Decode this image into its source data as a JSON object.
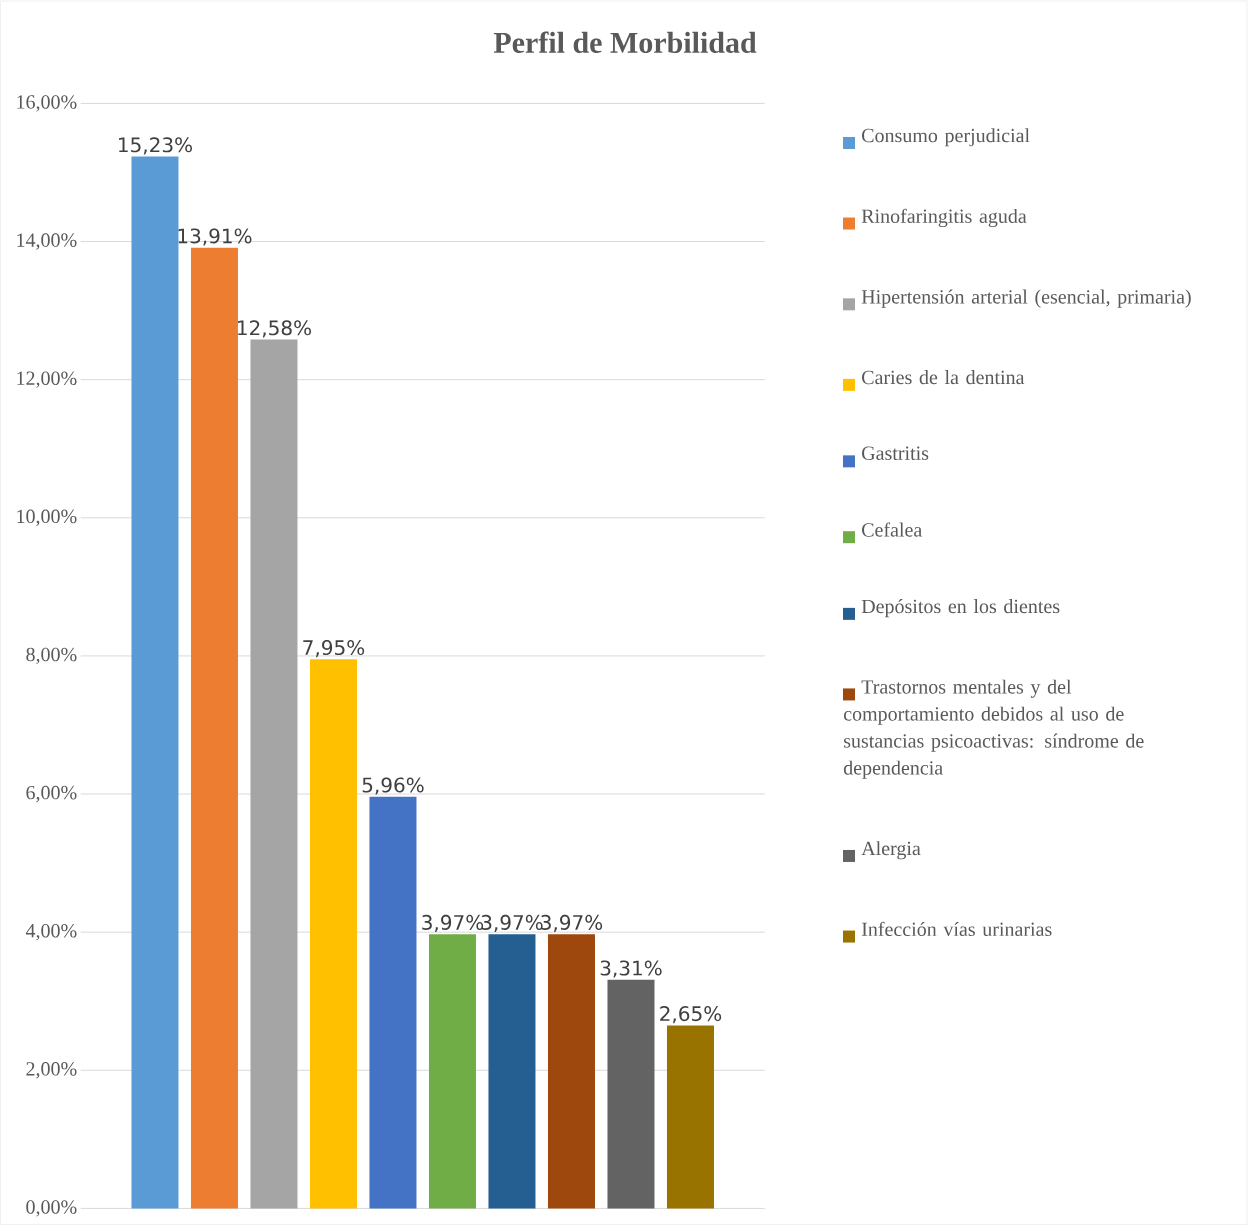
{
  "chart_data": {
    "type": "bar",
    "title": "Perfil de Morbilidad",
    "categories": [
      null
    ],
    "series": [
      {
        "name": "Consumo perjudicial",
        "color": "#5b9bd5",
        "values": [
          15.23
        ],
        "value_labels": [
          "15,23%"
        ]
      },
      {
        "name": "Rinofaringitis aguda",
        "color": "#ed7d31",
        "values": [
          13.91
        ],
        "value_labels": [
          "13,91%"
        ]
      },
      {
        "name": "Hipertensión arterial (esencial, primaria)",
        "color": "#a5a5a5",
        "values": [
          12.58
        ],
        "value_labels": [
          "12,58%"
        ]
      },
      {
        "name": "Caries de la dentina",
        "color": "#ffc000",
        "values": [
          7.95
        ],
        "value_labels": [
          "7,95%"
        ]
      },
      {
        "name": "Gastritis",
        "color": "#4472c4",
        "values": [
          5.96
        ],
        "value_labels": [
          "5,96%"
        ]
      },
      {
        "name": "Cefalea",
        "color": "#70ad47",
        "values": [
          3.97
        ],
        "value_labels": [
          "3,97%"
        ]
      },
      {
        "name": "Depósitos en los dientes",
        "color": "#255e91",
        "values": [
          3.97
        ],
        "value_labels": [
          "3,97%"
        ]
      },
      {
        "name": "Trastornos mentales y del comportamiento debidos al uso de sustancias psicoactivas: síndrome de dependencia",
        "color": "#9e480e",
        "values": [
          3.97
        ],
        "value_labels": [
          "3,97%"
        ]
      },
      {
        "name": "Alergia",
        "color": "#636363",
        "values": [
          3.31
        ],
        "value_labels": [
          "3,31%"
        ]
      },
      {
        "name": "Infección vías urinarias",
        "color": "#997300",
        "values": [
          2.65
        ],
        "value_labels": [
          "2,65%"
        ]
      }
    ],
    "ylim": [
      0,
      16
    ],
    "yticks": [
      {
        "value": 0,
        "label": "0,00%"
      },
      {
        "value": 2,
        "label": "2,00%"
      },
      {
        "value": 4,
        "label": "4,00%"
      },
      {
        "value": 6,
        "label": "6,00%"
      },
      {
        "value": 8,
        "label": "8,00%"
      },
      {
        "value": 10,
        "label": "10,00%"
      },
      {
        "value": 12,
        "label": "12,00%"
      },
      {
        "value": 14,
        "label": "14,00%"
      },
      {
        "value": 16,
        "label": "16,00%"
      }
    ],
    "grid": "y",
    "legend": "right",
    "tick_labels": "y"
  }
}
